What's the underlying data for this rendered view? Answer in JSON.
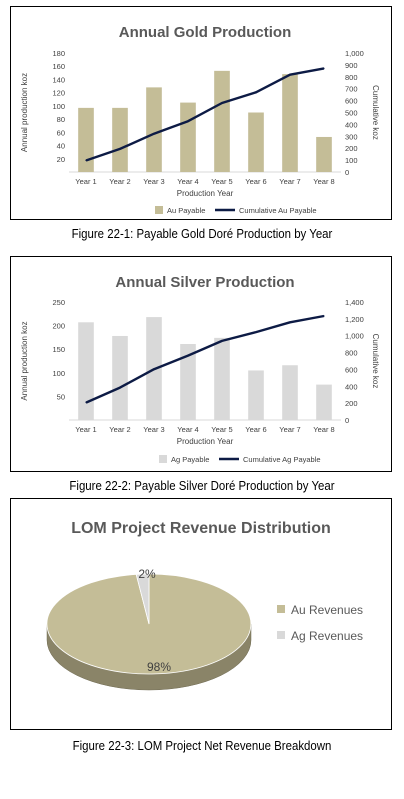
{
  "captions": {
    "gold": "Figure 22-1: Payable Gold Doré Production by Year",
    "silver": "Figure 22-2: Payable Silver Doré Production by Year",
    "pie": "Figure 22-3: LOM Project Net Revenue Breakdown"
  },
  "chart_data": [
    {
      "type": "bar",
      "title": "Annual Gold Production",
      "xlabel": "Production Year",
      "ylabel": "Annual production  koz",
      "y2label": "Cumulative koz",
      "categories": [
        "Year 1",
        "Year 2",
        "Year 3",
        "Year 4",
        "Year 5",
        "Year 6",
        "Year 7",
        "Year 8"
      ],
      "ylim": [
        0,
        180
      ],
      "yticks": [
        "20",
        "40",
        "60",
        "80",
        "100",
        "120",
        "140",
        "160",
        "180"
      ],
      "y2lim": [
        0,
        1000
      ],
      "y2ticks": [
        "0",
        "100",
        "200",
        "300",
        "400",
        "500",
        "600",
        "700",
        "800",
        "900",
        "1,000"
      ],
      "series": [
        {
          "name": "Au Payable",
          "kind": "bar",
          "axis": "left",
          "color": "#c4bd97",
          "values": [
            97,
            97,
            128,
            105,
            153,
            90,
            148,
            53
          ]
        },
        {
          "name": "Cumulative Au Payable",
          "kind": "line",
          "axis": "right",
          "color": "#0d1b45",
          "values": [
            97,
            194,
            322,
            427,
            580,
            670,
            818,
            871
          ]
        }
      ],
      "legend": "bottom"
    },
    {
      "type": "bar",
      "title": "Annual Silver Production",
      "xlabel": "Production Year",
      "ylabel": "Annual production  koz",
      "y2label": "Cumulative koz",
      "categories": [
        "Year 1",
        "Year 2",
        "Year 3",
        "Year 4",
        "Year 5",
        "Year 6",
        "Year 7",
        "Year 8"
      ],
      "ylim": [
        0,
        250
      ],
      "yticks": [
        "50",
        "100",
        "150",
        "200",
        "250"
      ],
      "y2lim": [
        0,
        1400
      ],
      "y2ticks": [
        "0",
        "200",
        "400",
        "600",
        "800",
        "1,000",
        "1,200",
        "1,400"
      ],
      "series": [
        {
          "name": "Ag Payable",
          "kind": "bar",
          "axis": "left",
          "color": "#d9d9d9",
          "values": [
            207,
            178,
            218,
            161,
            174,
            105,
            116,
            75
          ]
        },
        {
          "name": "Cumulative Ag Payable",
          "kind": "line",
          "axis": "right",
          "color": "#0d1b45",
          "values": [
            207,
            385,
            603,
            764,
            938,
            1043,
            1159,
            1234
          ]
        }
      ],
      "legend": "bottom"
    },
    {
      "type": "pie",
      "title": "LOM Project Revenue Distribution",
      "slices": [
        {
          "name": "Au Revenues",
          "value": 98,
          "label": "98%",
          "color": "#c4bd97"
        },
        {
          "name": "Ag Revenues",
          "value": 2,
          "label": "2%",
          "color": "#d9d9d9"
        }
      ],
      "legend": "right"
    }
  ]
}
